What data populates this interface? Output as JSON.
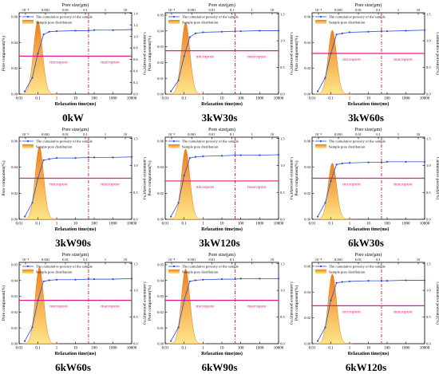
{
  "figure": {
    "panel_ids": [
      "p0",
      "p1",
      "p2",
      "p3",
      "p4",
      "p5",
      "p6",
      "p7",
      "p8"
    ]
  },
  "panels": [
    {
      "caption": "0kW",
      "xlabel": "Relaxation time(ms)",
      "ylabel": "Pore component(%)",
      "ylabel_right": "Cumulative porosity(%)",
      "toplabel": "Pore size(μm)",
      "legend": [
        "The cumulative porosity of the sample",
        "Sample pore distribution"
      ],
      "micro": "micropore",
      "macro": "macropore",
      "yticks": [
        "0.00",
        "0.02",
        "0.04",
        "0.06"
      ],
      "yticks_right": [
        "0.0",
        "0.2",
        "0.4",
        "0.6",
        "0.8",
        "1.0",
        "1.2",
        "1.4"
      ]
    },
    {
      "caption": "3kW30s",
      "xlabel": "Relaxation time(ms)",
      "ylabel": "Pore component(%)",
      "ylabel_right": "Cumulative porosity(%)",
      "toplabel": "Pore size(μm)",
      "legend": [
        "The cumulative porosity of the sample",
        "Sample pore distribution"
      ],
      "micro": "micropore",
      "macro": "macropore",
      "yticks": [
        "0.00",
        "0.01",
        "0.02",
        "0.03",
        "0.04",
        "0.05"
      ],
      "yticks_right": [
        "0.0",
        "0.5",
        "1.0",
        "1.5"
      ]
    },
    {
      "caption": "3kW60s",
      "xlabel": "Relaxation time(ms)",
      "ylabel": "Pore component(%)",
      "ylabel_right": "Cumulative porosity(%)",
      "toplabel": "Pore size(μm)",
      "legend": [
        "The cumulative porosity of the sample",
        "Sample pore distribution"
      ],
      "micro": "micropore",
      "macro": "macropore",
      "yticks": [
        "0.00",
        "0.02",
        "0.04",
        "0.06"
      ],
      "yticks_right": [
        "0.0",
        "0.5",
        "1.0",
        "1.5"
      ]
    },
    {
      "caption": "3kW90s",
      "xlabel": "Relaxation time(ms)",
      "ylabel": "Pore component(%)",
      "ylabel_right": "Cumulative porosity(%)",
      "toplabel": "Pore size(μm)",
      "legend": [
        "The cumulative porosity of the sample",
        "Sample pore distribution"
      ],
      "micro": "micropore",
      "macro": "macropore",
      "yticks": [
        "0.00",
        "0.02",
        "0.04",
        "0.06"
      ],
      "yticks_right": [
        "0.0",
        "0.5",
        "1.0",
        "1.5"
      ]
    },
    {
      "caption": "3kW120s",
      "xlabel": "Relaxation time(ms)",
      "ylabel": "Pore component(%)",
      "ylabel_right": "Cumulative porosity(%)",
      "toplabel": "Pore size(μm)",
      "legend": [
        "The cumulative porosity of the sample",
        "Sample pore distribution"
      ],
      "micro": "micropore",
      "macro": "macropore",
      "yticks": [
        "0.00",
        "0.02",
        "0.04",
        "0.06"
      ],
      "yticks_right": [
        "0.0",
        "0.5",
        "1.0",
        "1.5"
      ]
    },
    {
      "caption": "6kW30s",
      "xlabel": "Relaxation time(ms)",
      "ylabel": "Pore component(%)",
      "ylabel_right": "Cumulative porosity(%)",
      "toplabel": "Pore size(μm)",
      "legend": [
        "The cumulative porosity of the sample",
        "Sample pore distribution"
      ],
      "micro": "micropore",
      "macro": "macropore",
      "yticks": [
        "0.00",
        "0.02",
        "0.04",
        "0.06"
      ],
      "yticks_right": [
        "0.0",
        "0.5",
        "1.0",
        "1.5"
      ]
    },
    {
      "caption": "6kW60s",
      "xlabel": "Relaxation time(ms)",
      "ylabel": "Pore component(%)",
      "ylabel_right": "Cumulative porosity(%)",
      "toplabel": "Pore size(μm)",
      "legend": [
        "The cumulative porosity of the sample",
        "Sample pore distribution"
      ],
      "micro": "micropore",
      "macro": "macropore",
      "yticks": [
        "0.00",
        "0.01",
        "0.02",
        "0.03",
        "0.04",
        "0.05"
      ],
      "yticks_right": [
        "0.0",
        "0.5",
        "1.0",
        "1.5"
      ]
    },
    {
      "caption": "6kW90s",
      "xlabel": "Relaxation time(ms)",
      "ylabel": "Pore component(%)",
      "ylabel_right": "Cumulative porosity(%)",
      "toplabel": "Pore size(μm)",
      "legend": [
        "The cumulative porosity of the sample",
        "Sample pore distribution"
      ],
      "micro": "micropore",
      "macro": "macropore",
      "yticks": [
        "0.00",
        "0.01",
        "0.02",
        "0.03",
        "0.04",
        "0.05"
      ],
      "yticks_right": [
        "0.0",
        "0.5",
        "1.0",
        "1.5"
      ]
    },
    {
      "caption": "6kW120s",
      "xlabel": "Relaxation time(ms)",
      "ylabel": "Pore component(%)",
      "ylabel_right": "Cumulative porosity(%)",
      "toplabel": "Pore size(μm)",
      "legend": [
        "The cumulative porosity of the sample",
        "Sample pore distribution"
      ],
      "micro": "micropore",
      "macro": "macropore",
      "yticks": [
        "0.00",
        "0.02",
        "0.04",
        "0.06"
      ],
      "yticks_right": [
        "0.0",
        "0.5",
        "1.0",
        "1.5"
      ]
    }
  ],
  "chart_data": [
    {
      "type": "area",
      "title": "0kW",
      "x_scale": "log",
      "xlim": [
        0.01,
        10000
      ],
      "xticks": [
        "0.01",
        "0.1",
        "1",
        "10",
        "100",
        "1000",
        "10000"
      ],
      "top_ticks": [
        "10⁻⁴",
        "0.001",
        "0.01",
        "0.1",
        "1",
        "10"
      ],
      "ylim": [
        0,
        0.07
      ],
      "ylim_right": [
        0,
        1.5
      ],
      "series": [
        {
          "name": "Sample pore distribution",
          "peak_x": 0.1,
          "peak_y": 0.063,
          "width_decades": 0.42,
          "color": "#f07f1a"
        },
        {
          "name": "The cumulative porosity of the sample",
          "x": [
            0.02,
            0.05,
            0.1,
            0.2,
            0.4,
            1,
            10,
            50,
            100,
            1000,
            10000
          ],
          "y": [
            0.05,
            0.3,
            0.75,
            1.1,
            1.15,
            1.16,
            1.17,
            1.17,
            1.18,
            1.18,
            1.19
          ],
          "color": "#2b4bd6"
        }
      ],
      "reference_line_y": 0.7,
      "boundary_x": 50
    },
    {
      "type": "area",
      "title": "3kW30s",
      "x_scale": "log",
      "xlim": [
        0.01,
        10000
      ],
      "xticks": [
        "0.01",
        "0.1",
        "1",
        "10",
        "100",
        "1000",
        "10000"
      ],
      "top_ticks": [
        "10⁻⁴",
        "0.001",
        "0.01",
        "0.1",
        "1",
        "10"
      ],
      "ylim": [
        0,
        0.05
      ],
      "ylim_right": [
        0,
        1.5
      ],
      "series": [
        {
          "name": "Sample pore distribution",
          "peak_x": 0.12,
          "peak_y": 0.044,
          "width_decades": 0.4,
          "color": "#f07f1a"
        },
        {
          "name": "The cumulative porosity of the sample",
          "x": [
            0.02,
            0.05,
            0.1,
            0.2,
            0.4,
            1,
            10,
            50,
            100,
            1000,
            10000
          ],
          "y": [
            0.05,
            0.25,
            0.7,
            1.05,
            1.12,
            1.14,
            1.15,
            1.16,
            1.16,
            1.17,
            1.17
          ],
          "color": "#2b4bd6"
        }
      ],
      "reference_line_y": 0.8,
      "boundary_x": 50
    },
    {
      "type": "area",
      "title": "3kW60s",
      "x_scale": "log",
      "xlim": [
        0.01,
        10000
      ],
      "xticks": [
        "0.01",
        "0.1",
        "1",
        "10",
        "100",
        "1000",
        "10000"
      ],
      "top_ticks": [
        "10⁻⁴",
        "0.001",
        "0.01",
        "0.1",
        "1",
        "10"
      ],
      "ylim": [
        0,
        0.07
      ],
      "ylim_right": [
        0,
        1.5
      ],
      "series": [
        {
          "name": "Sample pore distribution",
          "peak_x": 0.12,
          "peak_y": 0.055,
          "width_decades": 0.4,
          "color": "#f07f1a"
        },
        {
          "name": "The cumulative porosity of the sample",
          "x": [
            0.02,
            0.05,
            0.1,
            0.2,
            0.4,
            1,
            10,
            50,
            100,
            1000,
            10000
          ],
          "y": [
            0.05,
            0.3,
            0.75,
            1.1,
            1.12,
            1.14,
            1.15,
            1.16,
            1.16,
            1.17,
            1.18
          ],
          "color": "#2b4bd6"
        }
      ],
      "reference_line_y": 0.75,
      "boundary_x": 50
    },
    {
      "type": "area",
      "title": "3kW90s",
      "x_scale": "log",
      "xlim": [
        0.01,
        10000
      ],
      "xticks": [
        "0.01",
        "0.1",
        "1",
        "10",
        "100",
        "1000",
        "10000"
      ],
      "top_ticks": [
        "10⁻⁴",
        "0.001",
        "0.01",
        "0.1",
        "1",
        "10"
      ],
      "ylim": [
        0,
        0.07
      ],
      "ylim_right": [
        0,
        1.5
      ],
      "series": [
        {
          "name": "Sample pore distribution",
          "peak_x": 0.12,
          "peak_y": 0.062,
          "width_decades": 0.4,
          "color": "#f07f1a"
        },
        {
          "name": "The cumulative porosity of the sample",
          "x": [
            0.02,
            0.05,
            0.1,
            0.2,
            0.4,
            1,
            10,
            50,
            100,
            1000,
            10000
          ],
          "y": [
            0.05,
            0.3,
            0.75,
            1.08,
            1.1,
            1.12,
            1.12,
            1.13,
            1.13,
            1.13,
            1.14
          ],
          "color": "#2b4bd6"
        }
      ],
      "reference_line_y": 0.75,
      "boundary_x": 50
    },
    {
      "type": "area",
      "title": "3kW120s",
      "x_scale": "log",
      "xlim": [
        0.01,
        10000
      ],
      "xticks": [
        "0.01",
        "0.1",
        "1",
        "10",
        "100",
        "1000",
        "10000"
      ],
      "top_ticks": [
        "10⁻⁴",
        "0.001",
        "0.01",
        "0.1",
        "1",
        "10"
      ],
      "ylim": [
        0,
        0.07
      ],
      "ylim_right": [
        0,
        1.5
      ],
      "series": [
        {
          "name": "Sample pore distribution",
          "peak_x": 0.12,
          "peak_y": 0.06,
          "width_decades": 0.4,
          "color": "#f07f1a"
        },
        {
          "name": "The cumulative porosity of the sample",
          "x": [
            0.02,
            0.05,
            0.1,
            0.2,
            0.4,
            1,
            10,
            50,
            100,
            1000,
            10000
          ],
          "y": [
            0.05,
            0.3,
            0.8,
            1.12,
            1.14,
            1.15,
            1.16,
            1.17,
            1.17,
            1.17,
            1.18
          ],
          "color": "#2b4bd6"
        }
      ],
      "reference_line_y": 0.7,
      "boundary_x": 50
    },
    {
      "type": "area",
      "title": "6kW30s",
      "x_scale": "log",
      "xlim": [
        0.01,
        10000
      ],
      "xticks": [
        "0.01",
        "0.1",
        "1",
        "10",
        "100",
        "1000",
        "10000"
      ],
      "top_ticks": [
        "10⁻⁴",
        "0.001",
        "0.01",
        "0.1",
        "1",
        "10"
      ],
      "ylim": [
        0,
        0.07
      ],
      "ylim_right": [
        0,
        1.5
      ],
      "series": [
        {
          "name": "Sample pore distribution",
          "peak_x": 0.12,
          "peak_y": 0.048,
          "width_decades": 0.4,
          "color": "#f07f1a"
        },
        {
          "name": "The cumulative porosity of the sample",
          "x": [
            0.02,
            0.05,
            0.1,
            0.2,
            0.4,
            1,
            10,
            50,
            100,
            1000,
            10000
          ],
          "y": [
            0.05,
            0.3,
            0.7,
            1.0,
            1.02,
            1.03,
            1.04,
            1.04,
            1.05,
            1.05,
            1.05
          ],
          "color": "#2b4bd6"
        }
      ],
      "reference_line_y": 0.75,
      "boundary_x": 50
    },
    {
      "type": "area",
      "title": "6kW60s",
      "x_scale": "log",
      "xlim": [
        0.01,
        10000
      ],
      "xticks": [
        "0.01",
        "0.1",
        "1",
        "10",
        "100",
        "1000",
        "10000"
      ],
      "top_ticks": [
        "10⁻⁴",
        "0.001",
        "0.01",
        "0.1",
        "1",
        "10"
      ],
      "ylim": [
        0,
        0.05
      ],
      "ylim_right": [
        0,
        1.5
      ],
      "series": [
        {
          "name": "Sample pore distribution",
          "peak_x": 0.12,
          "peak_y": 0.047,
          "width_decades": 0.4,
          "color": "#f07f1a"
        },
        {
          "name": "The cumulative porosity of the sample",
          "x": [
            0.02,
            0.05,
            0.1,
            0.2,
            0.4,
            1,
            10,
            50,
            100,
            1000,
            10000
          ],
          "y": [
            0.05,
            0.3,
            0.8,
            1.15,
            1.17,
            1.18,
            1.18,
            1.19,
            1.19,
            1.19,
            1.2
          ],
          "color": "#2b4bd6"
        }
      ],
      "reference_line_y": 0.8,
      "boundary_x": 50
    },
    {
      "type": "area",
      "title": "6kW90s",
      "x_scale": "log",
      "xlim": [
        0.01,
        10000
      ],
      "xticks": [
        "0.01",
        "0.1",
        "1",
        "10",
        "100",
        "1000",
        "10000"
      ],
      "top_ticks": [
        "10⁻⁴",
        "0.001",
        "0.01",
        "0.1",
        "1",
        "10"
      ],
      "ylim": [
        0,
        0.05
      ],
      "ylim_right": [
        0,
        1.5
      ],
      "series": [
        {
          "name": "Sample pore distribution",
          "peak_x": 0.12,
          "peak_y": 0.046,
          "width_decades": 0.4,
          "color": "#f07f1a"
        },
        {
          "name": "The cumulative porosity of the sample",
          "x": [
            0.02,
            0.05,
            0.1,
            0.2,
            0.4,
            1,
            10,
            50,
            100,
            1000,
            10000
          ],
          "y": [
            0.05,
            0.3,
            0.8,
            1.15,
            1.17,
            1.18,
            1.19,
            1.19,
            1.2,
            1.2,
            1.2
          ],
          "color": "#2b4bd6"
        }
      ],
      "reference_line_y": 0.8,
      "boundary_x": 50
    },
    {
      "type": "area",
      "title": "6kW120s",
      "x_scale": "log",
      "xlim": [
        0.01,
        10000
      ],
      "xticks": [
        "0.01",
        "0.1",
        "1",
        "10",
        "100",
        "1000",
        "10000"
      ],
      "top_ticks": [
        "10⁻⁴",
        "0.001",
        "0.01",
        "0.1",
        "1",
        "10"
      ],
      "ylim": [
        0,
        0.07
      ],
      "ylim_right": [
        0,
        1.5
      ],
      "series": [
        {
          "name": "Sample pore distribution",
          "peak_x": 0.12,
          "peak_y": 0.06,
          "width_decades": 0.4,
          "color": "#f07f1a"
        },
        {
          "name": "The cumulative porosity of the sample",
          "x": [
            0.02,
            0.05,
            0.1,
            0.2,
            0.4,
            1,
            10,
            50,
            100,
            1000,
            10000
          ],
          "y": [
            0.05,
            0.3,
            0.8,
            1.12,
            1.14,
            1.15,
            1.16,
            1.16,
            1.16,
            1.17,
            1.17
          ],
          "color": "#2b4bd6"
        }
      ],
      "reference_line_y": 0.7,
      "boundary_x": 50
    }
  ],
  "colors": {
    "peak": "#f07f1a",
    "peak_fill_light": "#fde58a",
    "cumulative": "#2b4bd6",
    "reference": "#e8198b",
    "boundary": "#d82323"
  }
}
